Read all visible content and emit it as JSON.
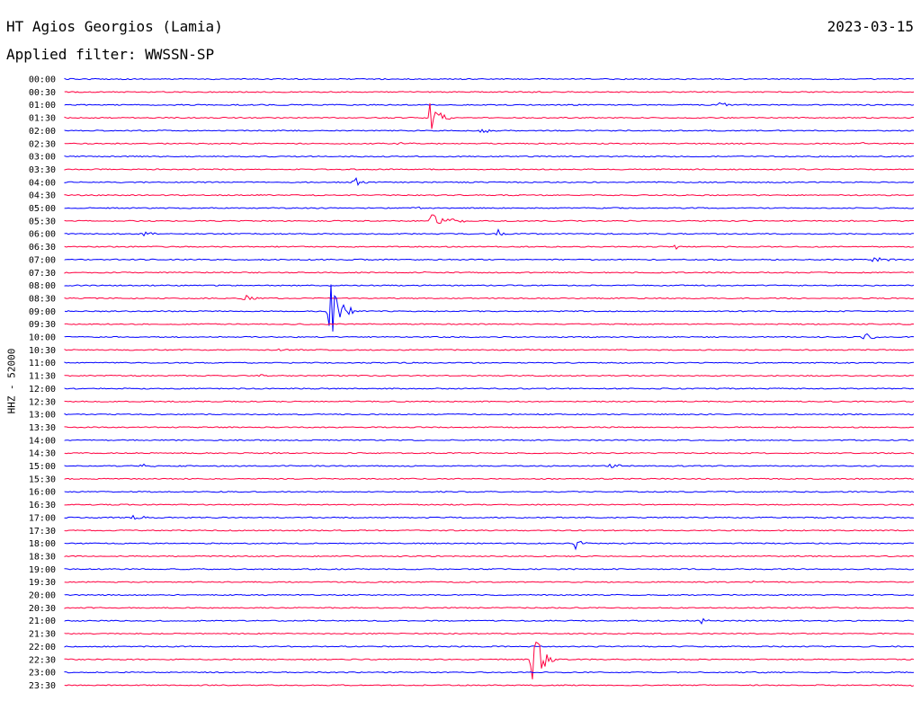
{
  "header": {
    "station": "HT Agios Georgios (Lamia)",
    "date": "2023-03-15",
    "filter": "Applied filter: WWSSN-SP"
  },
  "axis": {
    "ylabel": "HHZ - 52000"
  },
  "colors": {
    "even_trace": "#0000ff",
    "odd_trace": "#ff0040",
    "text": "#000000"
  },
  "chart_data": {
    "type": "line",
    "title": "HT Agios Georgios (Lamia)",
    "ylabel": "HHZ - 52000",
    "xlabel": "",
    "trace_interval_minutes": 30,
    "rows": [
      {
        "label": "00:00",
        "events": []
      },
      {
        "label": "00:30",
        "events": [
          {
            "x": 0.55,
            "amp": 2,
            "dur": 0.01
          }
        ]
      },
      {
        "label": "01:00",
        "events": [
          {
            "x": 0.77,
            "amp": 3,
            "dur": 0.03
          }
        ]
      },
      {
        "label": "01:30",
        "events": [
          {
            "x": 0.43,
            "amp": 18,
            "dur": 0.03
          }
        ]
      },
      {
        "label": "02:00",
        "events": [
          {
            "x": 0.49,
            "amp": 6,
            "dur": 0.02
          },
          {
            "x": 0.09,
            "amp": 2,
            "dur": 0.01
          }
        ]
      },
      {
        "label": "02:30",
        "events": [
          {
            "x": 0.39,
            "amp": 2,
            "dur": 0.03
          },
          {
            "x": 0.94,
            "amp": 2,
            "dur": 0.01
          }
        ]
      },
      {
        "label": "03:00",
        "events": []
      },
      {
        "label": "03:30",
        "events": []
      },
      {
        "label": "04:00",
        "events": [
          {
            "x": 0.34,
            "amp": 9,
            "dur": 0.02
          }
        ]
      },
      {
        "label": "04:30",
        "events": []
      },
      {
        "label": "05:00",
        "events": [
          {
            "x": 0.41,
            "amp": 6,
            "dur": 0.01
          }
        ]
      },
      {
        "label": "05:30",
        "events": [
          {
            "x": 0.43,
            "amp": 10,
            "dur": 0.05
          }
        ]
      },
      {
        "label": "06:00",
        "events": [
          {
            "x": 0.51,
            "amp": 9,
            "dur": 0.01
          },
          {
            "x": 0.09,
            "amp": 5,
            "dur": 0.03
          }
        ]
      },
      {
        "label": "06:30",
        "events": [
          {
            "x": 0.72,
            "amp": 5,
            "dur": 0.01
          }
        ]
      },
      {
        "label": "07:00",
        "events": [
          {
            "x": 0.95,
            "amp": 6,
            "dur": 0.03
          }
        ]
      },
      {
        "label": "07:30",
        "events": [
          {
            "x": 0.42,
            "amp": 2,
            "dur": 0.01
          }
        ]
      },
      {
        "label": "08:00",
        "events": []
      },
      {
        "label": "08:30",
        "events": [
          {
            "x": 0.21,
            "amp": 6,
            "dur": 0.02
          }
        ]
      },
      {
        "label": "09:00",
        "events": [
          {
            "x": 0.31,
            "amp": 55,
            "dur": 0.03
          }
        ]
      },
      {
        "label": "09:30",
        "events": [
          {
            "x": 0.89,
            "amp": 5,
            "dur": 0.003
          }
        ]
      },
      {
        "label": "10:00",
        "events": [
          {
            "x": 0.94,
            "amp": 9,
            "dur": 0.02
          }
        ]
      },
      {
        "label": "10:30",
        "events": [
          {
            "x": 0.25,
            "amp": 4,
            "dur": 0.02
          }
        ]
      },
      {
        "label": "11:00",
        "events": []
      },
      {
        "label": "11:30",
        "events": [
          {
            "x": 0.23,
            "amp": 2,
            "dur": 0.01
          }
        ]
      },
      {
        "label": "12:00",
        "events": []
      },
      {
        "label": "12:30",
        "events": []
      },
      {
        "label": "13:00",
        "events": []
      },
      {
        "label": "13:30",
        "events": []
      },
      {
        "label": "14:00",
        "events": []
      },
      {
        "label": "14:30",
        "events": []
      },
      {
        "label": "15:00",
        "events": [
          {
            "x": 0.64,
            "amp": 9,
            "dur": 0.02
          },
          {
            "x": 0.09,
            "amp": 3,
            "dur": 0.02
          }
        ]
      },
      {
        "label": "15:30",
        "events": []
      },
      {
        "label": "16:00",
        "events": []
      },
      {
        "label": "16:30",
        "events": []
      },
      {
        "label": "17:00",
        "events": [
          {
            "x": 0.08,
            "amp": 4,
            "dur": 0.03
          }
        ]
      },
      {
        "label": "17:30",
        "events": []
      },
      {
        "label": "18:00",
        "events": [
          {
            "x": 0.6,
            "amp": 8,
            "dur": 0.02
          }
        ]
      },
      {
        "label": "18:30",
        "events": []
      },
      {
        "label": "19:00",
        "events": []
      },
      {
        "label": "19:30",
        "events": [
          {
            "x": 0.81,
            "amp": 2,
            "dur": 0.03
          }
        ]
      },
      {
        "label": "20:00",
        "events": []
      },
      {
        "label": "20:30",
        "events": []
      },
      {
        "label": "21:00",
        "events": [
          {
            "x": 0.75,
            "amp": 4,
            "dur": 0.02
          }
        ]
      },
      {
        "label": "21:30",
        "events": []
      },
      {
        "label": "22:00",
        "events": []
      },
      {
        "label": "22:30",
        "events": [
          {
            "x": 0.55,
            "amp": 40,
            "dur": 0.03
          }
        ]
      },
      {
        "label": "23:00",
        "events": [
          {
            "x": 0.31,
            "amp": 2,
            "dur": 0.01
          }
        ]
      },
      {
        "label": "23:30",
        "events": [
          {
            "x": 0.998,
            "amp": 10,
            "dur": 0.003
          }
        ]
      }
    ]
  }
}
